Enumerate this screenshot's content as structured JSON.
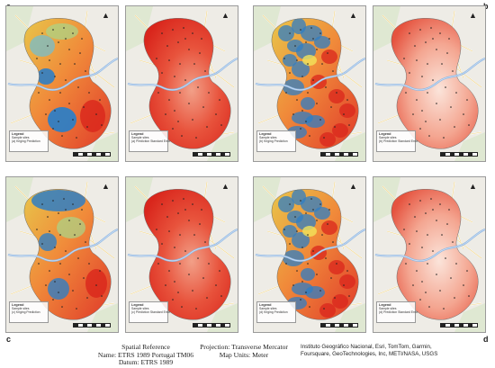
{
  "corner_labels": {
    "a": "a",
    "b": "b",
    "c": "c",
    "d": "d"
  },
  "panels": [
    {
      "id": "p1",
      "kind": "kriging",
      "row": 0,
      "col": 0,
      "legend_title": "Legend",
      "legend_lines": [
        "Sample sites",
        "(a) Kriging Prediction"
      ]
    },
    {
      "id": "p2",
      "kind": "error",
      "row": 0,
      "col": 1,
      "legend_title": "Legend",
      "legend_lines": [
        "Sample sites",
        "(a) Prediction Standard Error"
      ]
    },
    {
      "id": "p3",
      "kind": "kriging-noisy",
      "row": 0,
      "col": 2,
      "legend_title": "Legend",
      "legend_lines": [
        "Sample sites",
        "(b) Kriging Prediction"
      ]
    },
    {
      "id": "p4",
      "kind": "error-light",
      "row": 0,
      "col": 3,
      "legend_title": "Legend",
      "legend_lines": [
        "Sample sites",
        "(b) Prediction Standard Error"
      ]
    },
    {
      "id": "p5",
      "kind": "kriging-alt",
      "row": 1,
      "col": 0,
      "legend_title": "Legend",
      "legend_lines": [
        "Sample sites",
        "(c) Kriging Prediction"
      ]
    },
    {
      "id": "p6",
      "kind": "error",
      "row": 1,
      "col": 1,
      "legend_title": "Legend",
      "legend_lines": [
        "Sample sites",
        "(c) Prediction Standard Error"
      ]
    },
    {
      "id": "p7",
      "kind": "kriging-noisy",
      "row": 1,
      "col": 2,
      "legend_title": "Legend",
      "legend_lines": [
        "Sample sites",
        "(d) Kriging Prediction"
      ]
    },
    {
      "id": "p8",
      "kind": "error-light",
      "row": 1,
      "col": 3,
      "legend_title": "Legend",
      "legend_lines": [
        "Sample sites",
        "(d) Prediction Standard Error"
      ]
    }
  ],
  "footer": {
    "spatial_title": "Spatial Reference",
    "spatial_name": "Name: ETRS 1989 Portugal TM06",
    "spatial_datum": "Datum: ETRS 1989",
    "projection": "Projection: Transverse Mercator",
    "map_units": "Map Units: Meter",
    "credits_1": "Instituto Geográfico Nacional, Esri, TomTom, Garmin,",
    "credits_2": "Foursquare, GeoTechnologies, Inc, METI/NASA, USGS"
  },
  "north_symbol": "north-arrow-icon",
  "colors": {
    "blue": "#2f7ec4",
    "yellow": "#f2e35a",
    "orange": "#f08a3a",
    "red": "#e03a2a",
    "pale": "#f7d6c8",
    "basemap": "#eeece6"
  }
}
